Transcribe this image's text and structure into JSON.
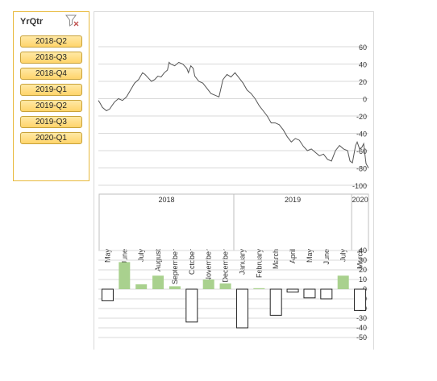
{
  "slicer": {
    "title": "YrQtr",
    "items": [
      "2018-Q2",
      "2018-Q3",
      "2018-Q4",
      "2019-Q1",
      "2019-Q2",
      "2019-Q3",
      "2020-Q1"
    ]
  },
  "chart_data": [
    {
      "type": "line",
      "ylim": [
        -100,
        60
      ],
      "yticks": [
        60,
        40,
        20,
        0,
        -20,
        -40,
        -60,
        -80,
        -100
      ],
      "grid": true,
      "x": [
        0,
        2,
        5,
        10,
        14,
        17,
        20,
        25,
        30,
        35,
        40,
        45,
        50,
        55,
        58,
        62,
        66,
        70,
        74,
        78,
        82,
        86,
        88,
        90,
        95,
        100,
        105,
        110,
        112,
        115,
        118,
        120,
        125,
        130,
        135,
        140,
        145,
        150,
        155,
        160,
        165,
        170,
        175,
        180,
        185,
        190,
        195,
        200,
        205,
        210,
        215,
        220,
        225,
        230,
        235,
        240,
        245,
        250,
        255,
        260,
        265,
        270,
        275,
        280,
        285,
        290,
        295,
        300,
        305,
        310,
        313,
        316,
        320,
        322,
        325,
        328,
        330,
        333,
        336
      ],
      "y": [
        -2,
        -5,
        -10,
        -14,
        -12,
        -8,
        -4,
        0,
        -2,
        2,
        10,
        18,
        22,
        30,
        28,
        24,
        20,
        22,
        26,
        25,
        30,
        33,
        42,
        40,
        38,
        42,
        40,
        35,
        30,
        38,
        35,
        26,
        20,
        18,
        12,
        6,
        4,
        2,
        22,
        28,
        25,
        30,
        24,
        18,
        10,
        6,
        0,
        -8,
        -14,
        -20,
        -28,
        -28,
        -30,
        -36,
        -44,
        -50,
        -46,
        -48,
        -55,
        -60,
        -58,
        -62,
        -66,
        -64,
        -70,
        -72,
        -60,
        -54,
        -58,
        -60,
        -72,
        -74,
        -54,
        -50,
        -58,
        -56,
        -52,
        -75,
        -80
      ]
    },
    {
      "type": "bar",
      "year_labels": [
        "2018",
        "2019",
        "2020"
      ],
      "categories": [
        "May",
        "June",
        "July",
        "August",
        "September",
        "October",
        "November",
        "December",
        "January",
        "February",
        "March",
        "April",
        "May",
        "June",
        "July",
        "March"
      ],
      "values": [
        -12,
        28,
        5,
        14,
        3,
        -34,
        10,
        6,
        -40,
        1,
        -27,
        -3,
        -9,
        -10,
        14,
        -22
      ],
      "ylim": [
        -50,
        40
      ],
      "yticks": [
        40,
        30,
        20,
        10,
        0,
        -10,
        -20,
        -30,
        -40,
        -50
      ],
      "grid": true
    }
  ],
  "colors": {
    "line": "#555555",
    "bar_pos": "#a9d18e",
    "bar_neg_fill": "#ffffff",
    "bar_neg_stroke": "#222222",
    "grid": "#d9d9d9",
    "slicer_border": "#e8b93c"
  }
}
